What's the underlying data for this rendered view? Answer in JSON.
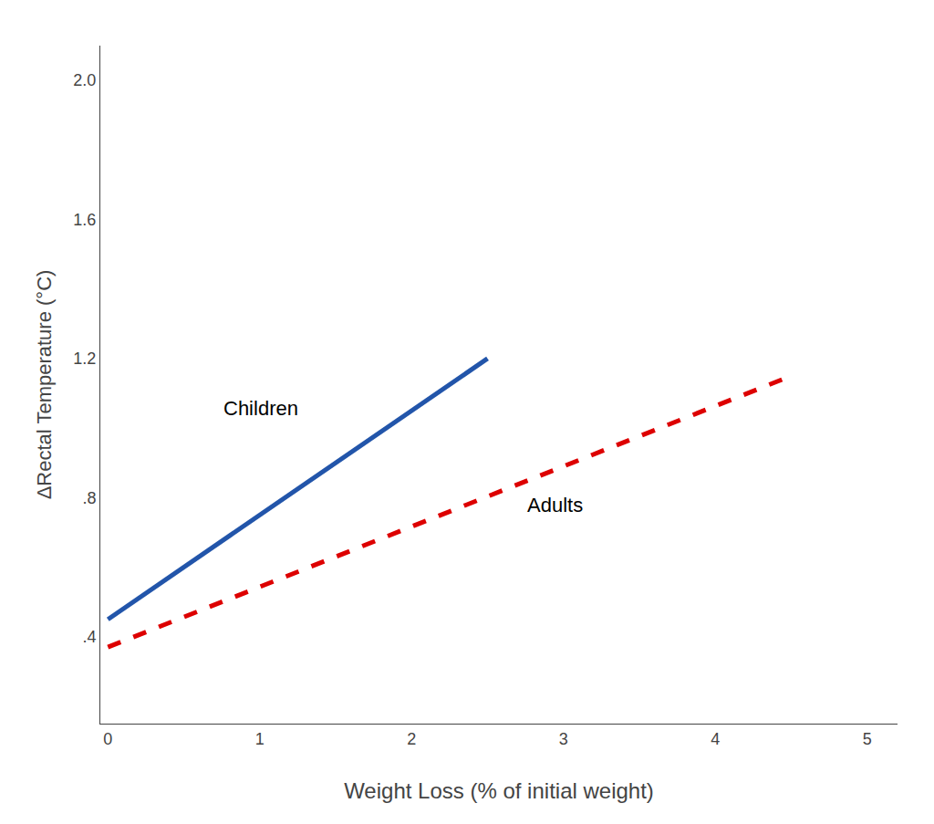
{
  "chart_data": {
    "type": "line",
    "xlabel": "Weight Loss (% of initial weight)",
    "ylabel": "ΔRectal Temperature (°C)",
    "series": [
      {
        "name": "Children",
        "color": "#2255aa",
        "line_style": "solid",
        "x": [
          0,
          2.5
        ],
        "values": [
          0.45,
          1.2
        ]
      },
      {
        "name": "Adults",
        "color": "#dd0000",
        "line_style": "dashed",
        "x": [
          0,
          4.5
        ],
        "values": [
          0.37,
          1.15
        ]
      }
    ],
    "annotations": [
      {
        "text": "Children",
        "x": 0.75,
        "y": 1.02
      },
      {
        "text": "Adults",
        "x": 2.75,
        "y": 0.74
      }
    ],
    "xlim": [
      -0.05,
      5.2
    ],
    "ylim": [
      0.15,
      2.1
    ],
    "xticks": [
      0,
      1,
      2,
      3,
      4,
      5
    ],
    "yticks": [
      {
        "value": 0.4,
        "label": ".4"
      },
      {
        "value": 0.8,
        "label": ".8"
      },
      1.2,
      1.6,
      {
        "value": 2.0,
        "label": "2.0"
      }
    ],
    "grid": false
  }
}
